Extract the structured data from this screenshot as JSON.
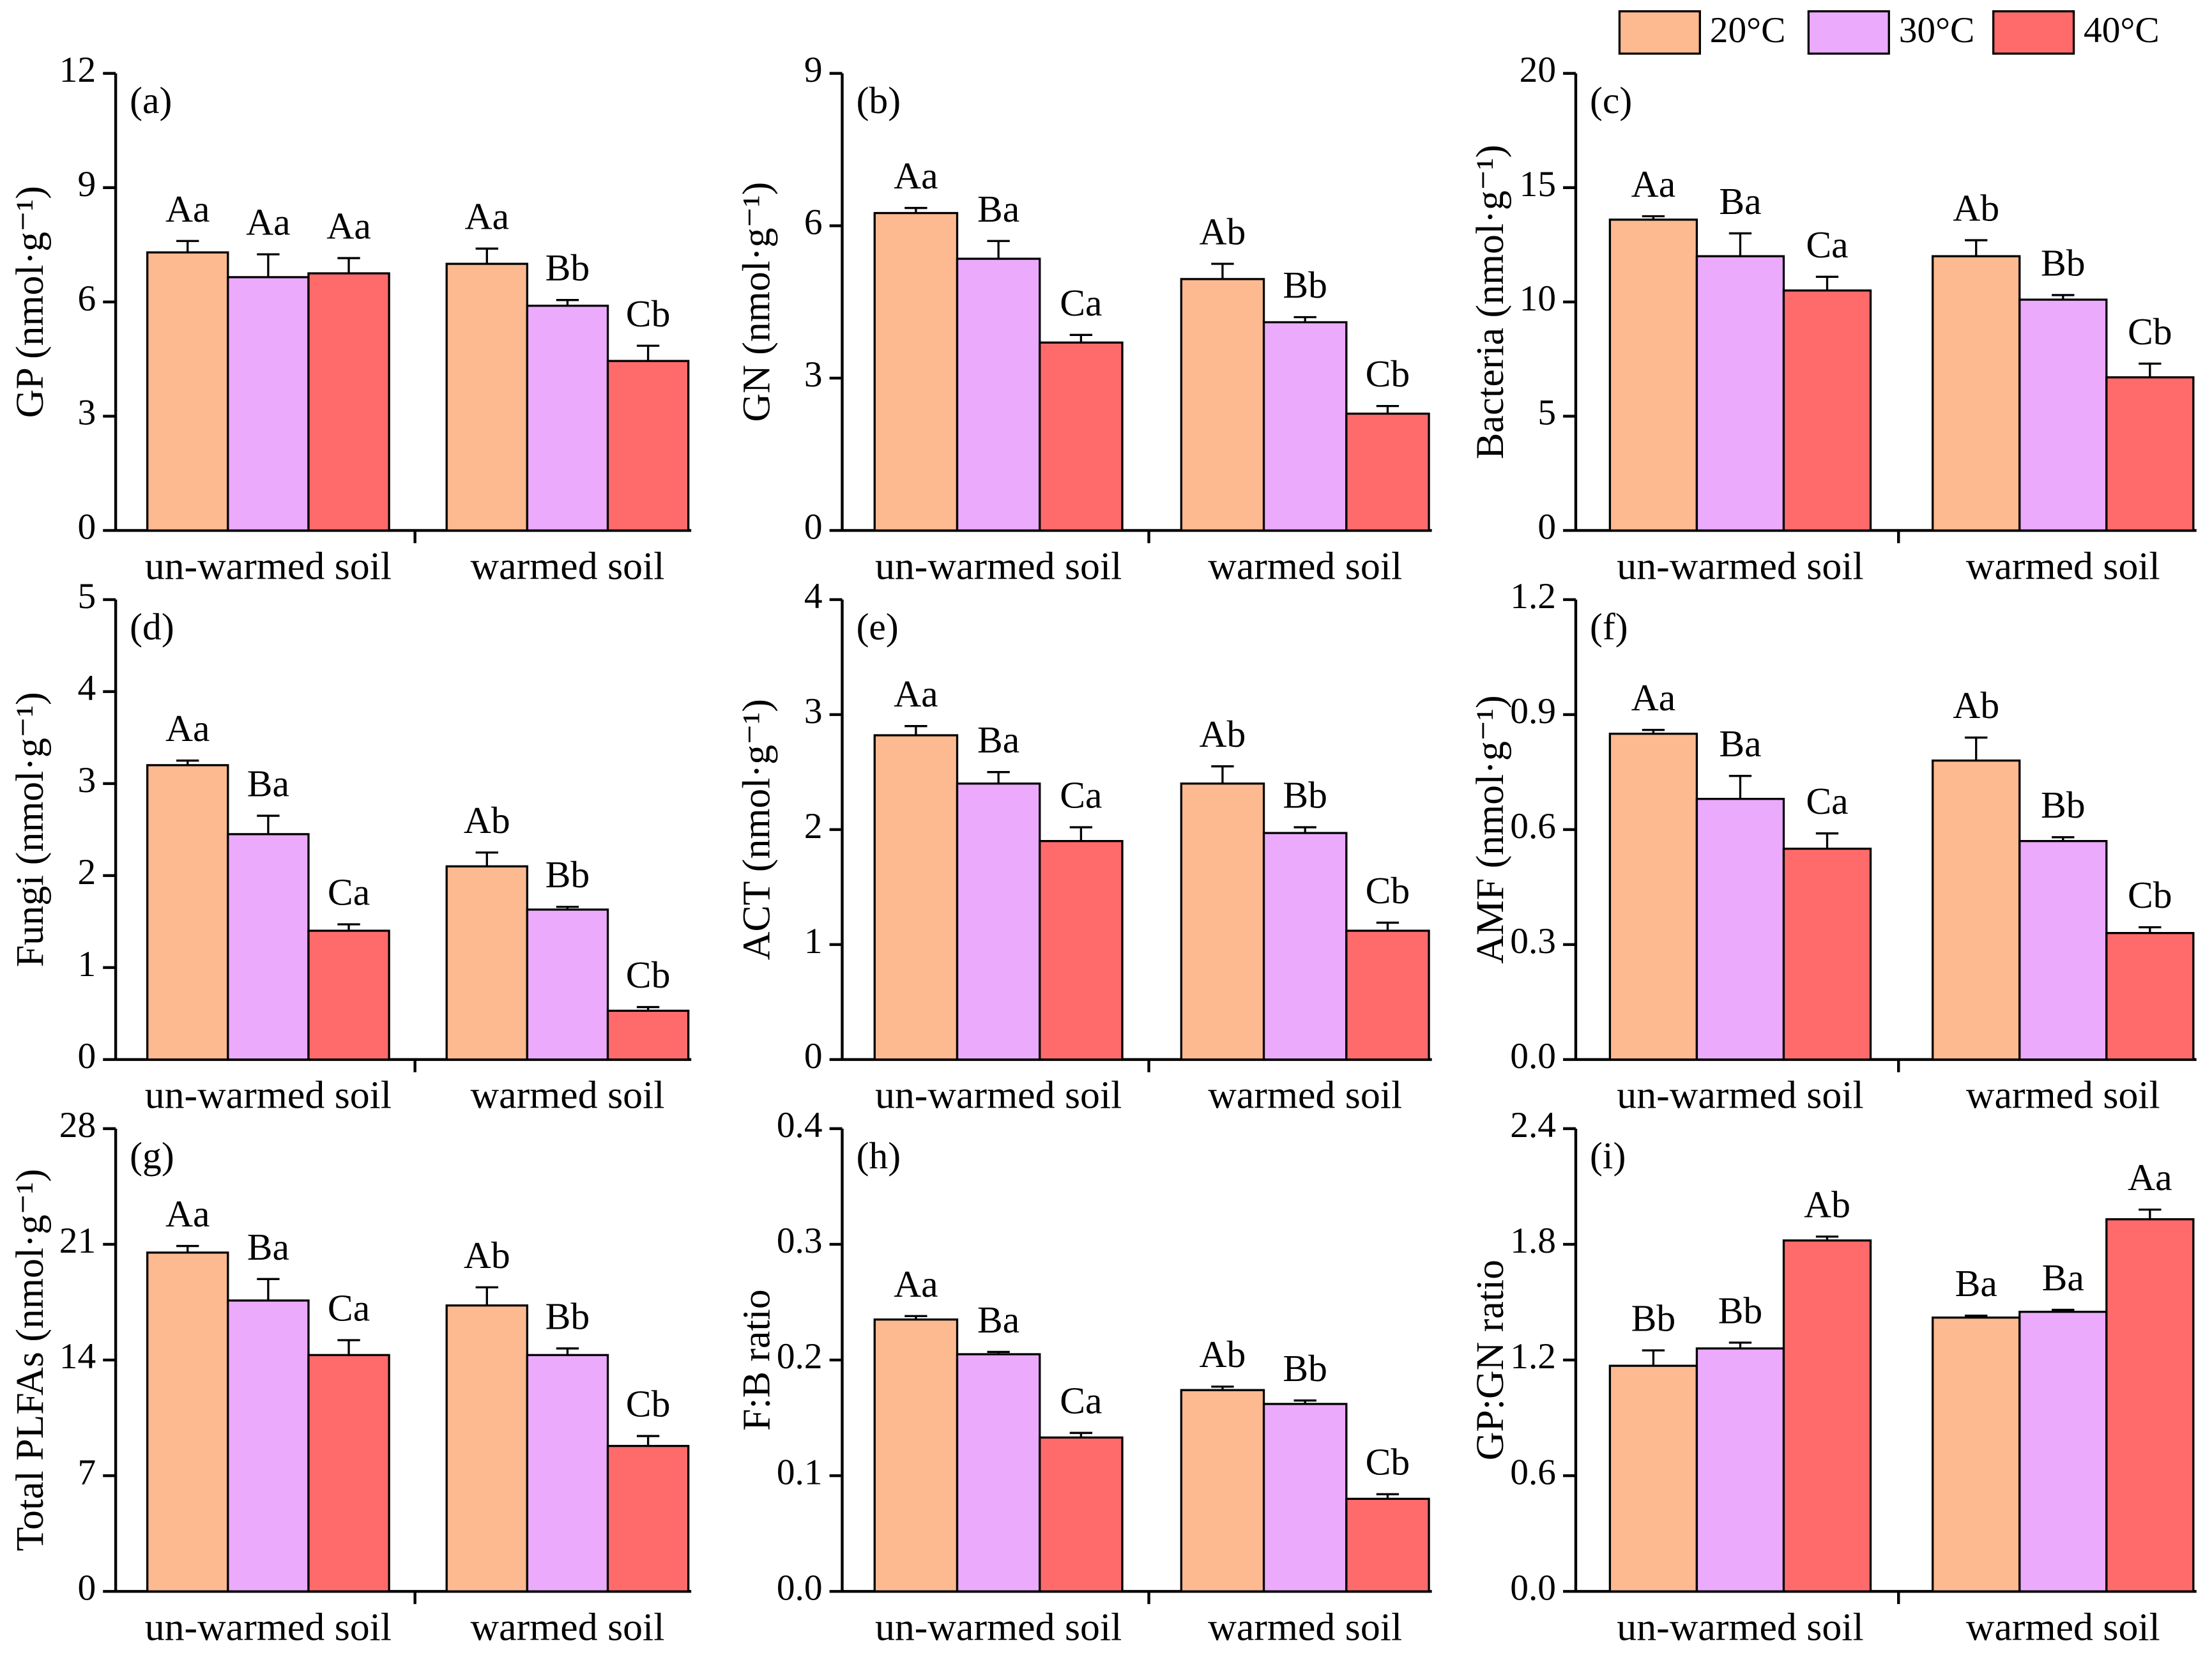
{
  "chart_data": [
    {
      "type": "bar",
      "annotation": "(a)",
      "y_label": "GP (nmol·g⁻¹)",
      "categories": [
        "un-warmed soil",
        "warmed soil"
      ],
      "ylim": [
        0,
        12
      ],
      "yticks": [
        0,
        3,
        6,
        9,
        12
      ],
      "series": [
        {
          "name": "20°C",
          "color": "#fdb98f",
          "values": [
            7.3,
            7.0
          ],
          "errors": [
            0.3,
            0.4
          ],
          "value_labels": [
            "Aa",
            "Aa"
          ]
        },
        {
          "name": "30°C",
          "color": "#ebaafb",
          "values": [
            6.65,
            5.9
          ],
          "errors": [
            0.6,
            0.15
          ],
          "value_labels": [
            "Aa",
            "Bb"
          ]
        },
        {
          "name": "40°C",
          "color": "#ff6b6b",
          "values": [
            6.75,
            4.45
          ],
          "errors": [
            0.4,
            0.4
          ],
          "value_labels": [
            "Aa",
            "Cb"
          ]
        }
      ]
    },
    {
      "type": "bar",
      "annotation": "(b)",
      "y_label": "GN (nmol·g⁻¹)",
      "categories": [
        "un-warmed soil",
        "warmed soil"
      ],
      "ylim": [
        0,
        9
      ],
      "yticks": [
        0,
        3,
        6,
        9
      ],
      "series": [
        {
          "color": "#fdb98f",
          "values": [
            6.25,
            4.95
          ],
          "errors": [
            0.1,
            0.3
          ],
          "value_labels": [
            "Aa",
            "Ab"
          ]
        },
        {
          "color": "#ebaafb",
          "values": [
            5.35,
            4.1
          ],
          "errors": [
            0.35,
            0.1
          ],
          "value_labels": [
            "Ba",
            "Bb"
          ]
        },
        {
          "color": "#ff6b6b",
          "values": [
            3.7,
            2.3
          ],
          "errors": [
            0.15,
            0.15
          ],
          "value_labels": [
            "Ca",
            "Cb"
          ]
        }
      ]
    },
    {
      "type": "bar",
      "annotation": "(c)",
      "y_label": "Bacteria (nmol·g⁻¹)",
      "categories": [
        "un-warmed soil",
        "warmed soil"
      ],
      "ylim": [
        0,
        20
      ],
      "yticks": [
        0,
        5,
        10,
        15,
        20
      ],
      "series": [
        {
          "color": "#fdb98f",
          "values": [
            13.6,
            12.0
          ],
          "errors": [
            0.15,
            0.7
          ],
          "value_labels": [
            "Aa",
            "Ab"
          ]
        },
        {
          "color": "#ebaafb",
          "values": [
            12.0,
            10.1
          ],
          "errors": [
            1.0,
            0.2
          ],
          "value_labels": [
            "Ba",
            "Bb"
          ]
        },
        {
          "color": "#ff6b6b",
          "values": [
            10.5,
            6.7
          ],
          "errors": [
            0.6,
            0.6
          ],
          "value_labels": [
            "Ca",
            "Cb"
          ]
        }
      ]
    },
    {
      "type": "bar",
      "annotation": "(d)",
      "y_label": "Fungi (nmol·g⁻¹)",
      "categories": [
        "un-warmed soil",
        "warmed soil"
      ],
      "ylim": [
        0,
        5
      ],
      "yticks": [
        0,
        1,
        2,
        3,
        4,
        5
      ],
      "series": [
        {
          "color": "#fdb98f",
          "values": [
            3.2,
            2.1
          ],
          "errors": [
            0.05,
            0.15
          ],
          "value_labels": [
            "Aa",
            "Ab"
          ]
        },
        {
          "color": "#ebaafb",
          "values": [
            2.45,
            1.63
          ],
          "errors": [
            0.2,
            0.03
          ],
          "value_labels": [
            "Ba",
            "Bb"
          ]
        },
        {
          "color": "#ff6b6b",
          "values": [
            1.4,
            0.53
          ],
          "errors": [
            0.07,
            0.04
          ],
          "value_labels": [
            "Ca",
            "Cb"
          ]
        }
      ]
    },
    {
      "type": "bar",
      "annotation": "(e)",
      "y_label": "ACT (nmol·g⁻¹)",
      "categories": [
        "un-warmed soil",
        "warmed soil"
      ],
      "ylim": [
        0,
        4
      ],
      "yticks": [
        0,
        1,
        2,
        3,
        4
      ],
      "series": [
        {
          "color": "#fdb98f",
          "values": [
            2.82,
            2.4
          ],
          "errors": [
            0.08,
            0.15
          ],
          "value_labels": [
            "Aa",
            "Ab"
          ]
        },
        {
          "color": "#ebaafb",
          "values": [
            2.4,
            1.97
          ],
          "errors": [
            0.1,
            0.05
          ],
          "value_labels": [
            "Ba",
            "Bb"
          ]
        },
        {
          "color": "#ff6b6b",
          "values": [
            1.9,
            1.12
          ],
          "errors": [
            0.12,
            0.07
          ],
          "value_labels": [
            "Ca",
            "Cb"
          ]
        }
      ]
    },
    {
      "type": "bar",
      "annotation": "(f)",
      "y_label": "AMF (nmol·g⁻¹)",
      "categories": [
        "un-warmed soil",
        "warmed soil"
      ],
      "ylim": [
        0,
        1.2
      ],
      "yticks": [
        {
          "value": 0,
          "label": "0.0"
        },
        0.3,
        0.6,
        0.9,
        1.2
      ],
      "series": [
        {
          "color": "#fdb98f",
          "values": [
            0.85,
            0.78
          ],
          "errors": [
            0.01,
            0.06
          ],
          "value_labels": [
            "Aa",
            "Ab"
          ]
        },
        {
          "color": "#ebaafb",
          "values": [
            0.68,
            0.57
          ],
          "errors": [
            0.06,
            0.01
          ],
          "value_labels": [
            "Ba",
            "Bb"
          ]
        },
        {
          "color": "#ff6b6b",
          "values": [
            0.55,
            0.33
          ],
          "errors": [
            0.04,
            0.015
          ],
          "value_labels": [
            "Ca",
            "Cb"
          ]
        }
      ]
    },
    {
      "type": "bar",
      "annotation": "(g)",
      "y_label": "Total  PLFAs (nmol·g⁻¹)",
      "categories": [
        "un-warmed soil",
        "warmed soil"
      ],
      "ylim": [
        0,
        28
      ],
      "yticks": [
        0,
        7,
        14,
        21,
        28
      ],
      "series": [
        {
          "color": "#fdb98f",
          "values": [
            20.5,
            17.3
          ],
          "errors": [
            0.4,
            1.1
          ],
          "value_labels": [
            "Aa",
            "Ab"
          ]
        },
        {
          "color": "#ebaafb",
          "values": [
            17.6,
            14.3
          ],
          "errors": [
            1.3,
            0.4
          ],
          "value_labels": [
            "Ba",
            "Bb"
          ]
        },
        {
          "color": "#ff6b6b",
          "values": [
            14.3,
            8.8
          ],
          "errors": [
            0.9,
            0.6
          ],
          "value_labels": [
            "Ca",
            "Cb"
          ]
        }
      ]
    },
    {
      "type": "bar",
      "annotation": "(h)",
      "y_label": "F:B ratio",
      "categories": [
        "un-warmed soil",
        "warmed soil"
      ],
      "ylim": [
        0,
        0.4
      ],
      "yticks": [
        {
          "value": 0,
          "label": "0.0"
        },
        0.1,
        0.2,
        0.3,
        0.4
      ],
      "series": [
        {
          "color": "#fdb98f",
          "values": [
            0.235,
            0.174
          ],
          "errors": [
            0.003,
            0.003
          ],
          "value_labels": [
            "Aa",
            "Ab"
          ]
        },
        {
          "color": "#ebaafb",
          "values": [
            0.205,
            0.162
          ],
          "errors": [
            0.002,
            0.003
          ],
          "value_labels": [
            "Ba",
            "Bb"
          ]
        },
        {
          "color": "#ff6b6b",
          "values": [
            0.133,
            0.08
          ],
          "errors": [
            0.004,
            0.004
          ],
          "value_labels": [
            "Ca",
            "Cb"
          ]
        }
      ]
    },
    {
      "type": "bar",
      "annotation": "(i)",
      "y_label": "GP:GN ratio",
      "categories": [
        "un-warmed soil",
        "warmed soil"
      ],
      "ylim": [
        0,
        2.4
      ],
      "yticks": [
        {
          "value": 0,
          "label": "0.0"
        },
        0.6,
        1.2,
        1.8,
        2.4
      ],
      "series": [
        {
          "color": "#fdb98f",
          "values": [
            1.17,
            1.42
          ],
          "errors": [
            0.08,
            0.01
          ],
          "value_labels": [
            "Bb",
            "Ba"
          ]
        },
        {
          "color": "#ebaafb",
          "values": [
            1.26,
            1.45
          ],
          "errors": [
            0.03,
            0.01
          ],
          "value_labels": [
            "Bb",
            "Ba"
          ]
        },
        {
          "color": "#ff6b6b",
          "values": [
            1.82,
            1.93
          ],
          "errors": [
            0.02,
            0.05
          ],
          "value_labels": [
            "Ab",
            "Aa"
          ]
        }
      ]
    }
  ]
}
